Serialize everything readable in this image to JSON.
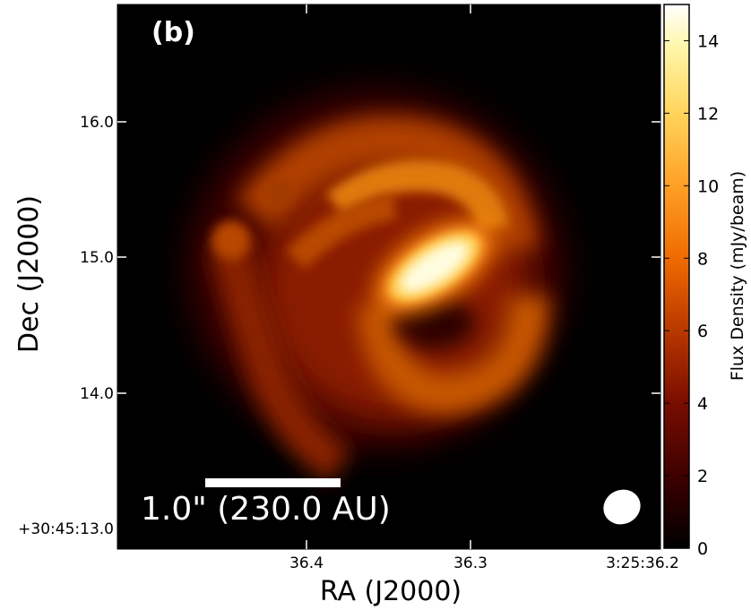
{
  "chart_data": {
    "type": "heatmap",
    "panel_label": "(b)",
    "xlabel": "RA (J2000)",
    "ylabel": "Dec (J2000)",
    "x_ticks": [
      "36.4",
      "36.3",
      "3:25:36.2"
    ],
    "y_ticks": [
      "+30:45:13.0",
      "14.0",
      "15.0",
      "16.0"
    ],
    "colorbar": {
      "label": "Flux Density (mJy/beam)",
      "ticks": [
        0,
        2,
        4,
        6,
        8,
        10,
        12,
        14
      ],
      "range": [
        0,
        15
      ],
      "colormap": "afmhot"
    },
    "scale_bar": {
      "label": "1.0\" (230.0 AU)",
      "length_arcsec": 1.0
    },
    "beam": "ellipse (bottom-right)",
    "features": [
      {
        "name": "central bright peak",
        "peak_mJy_per_beam": 15
      },
      {
        "name": "ring / spiral arms",
        "level_mJy_per_beam": 5
      },
      {
        "name": "inner dark cavity",
        "level_mJy_per_beam": 2
      }
    ]
  },
  "colors": {
    "background": "#000000",
    "cmap_stops": [
      "#000000",
      "#5a0000",
      "#a02800",
      "#e07000",
      "#ffb640",
      "#ffff9a",
      "#ffffff"
    ]
  }
}
